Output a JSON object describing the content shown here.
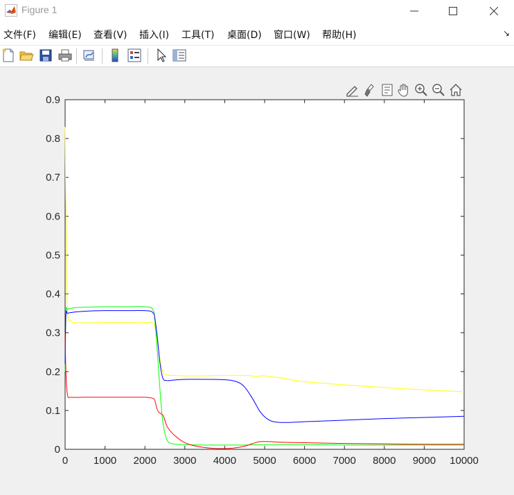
{
  "window": {
    "title": "Figure 1",
    "icon": "matlab-logo-icon",
    "controls": [
      "minimize-icon",
      "maximize-icon",
      "close-icon"
    ]
  },
  "menubar": {
    "items": [
      {
        "label": "文件(F)"
      },
      {
        "label": "编辑(E)"
      },
      {
        "label": "查看(V)"
      },
      {
        "label": "插入(I)"
      },
      {
        "label": "工具(T)"
      },
      {
        "label": "桌面(D)"
      },
      {
        "label": "窗口(W)"
      },
      {
        "label": "帮助(H)"
      }
    ],
    "dock_icon": "dock-arrow-icon"
  },
  "toolbar": {
    "icons": [
      "new-figure-icon",
      "open-file-icon",
      "save-icon",
      "print-icon",
      "link-plot-icon",
      "insert-colorbar-icon",
      "insert-legend-icon",
      "edit-plot-pointer-icon",
      "property-inspector-icon"
    ]
  },
  "axes_toolbar": {
    "icons": [
      "edit-data-tip-icon",
      "brush-icon",
      "data-tip-icon",
      "pan-icon",
      "zoom-in-icon",
      "zoom-out-icon",
      "home-icon"
    ]
  },
  "colors": {
    "figure_bg": "#f0f0f0",
    "axes_bg": "#ffffff",
    "blue": "#0000ff",
    "green": "#00ff00",
    "yellow": "#ffff00",
    "red": "#ff0000"
  },
  "chart_data": {
    "type": "line",
    "title": "",
    "xlabel": "",
    "ylabel": "",
    "xlim": [
      0,
      10000
    ],
    "ylim": [
      0,
      0.9
    ],
    "xticks": [
      "0",
      "1000",
      "2000",
      "3000",
      "4000",
      "5000",
      "6000",
      "7000",
      "8000",
      "9000",
      "10000"
    ],
    "yticks": [
      "0",
      "0.1",
      "0.2",
      "0.3",
      "0.4",
      "0.5",
      "0.6",
      "0.7",
      "0.8",
      "0.9"
    ],
    "grid": false,
    "box": true,
    "series": [
      {
        "color": "#ffff00",
        "x": [
          0,
          20,
          60,
          150,
          300,
          600,
          1000,
          1500,
          2000,
          2200,
          2260,
          2320,
          2380,
          2450,
          2550,
          2700,
          3000,
          3500,
          4000,
          4500,
          4800,
          5000,
          5500,
          6000,
          7000,
          8000,
          9000,
          10000
        ],
        "y": [
          0.83,
          0.6,
          0.36,
          0.33,
          0.326,
          0.326,
          0.327,
          0.327,
          0.327,
          0.325,
          0.31,
          0.27,
          0.23,
          0.2,
          0.192,
          0.19,
          0.189,
          0.189,
          0.19,
          0.19,
          0.188,
          0.189,
          0.182,
          0.174,
          0.166,
          0.159,
          0.153,
          0.148
        ]
      },
      {
        "color": "#00ff00",
        "x": [
          0,
          20,
          60,
          150,
          300,
          600,
          1000,
          1500,
          2000,
          2200,
          2260,
          2320,
          2380,
          2450,
          2550,
          2700,
          3000,
          3500,
          4000,
          4500,
          5000,
          5500,
          6000,
          7000,
          8000,
          9000,
          10000
        ],
        "y": [
          0.2,
          0.35,
          0.36,
          0.363,
          0.365,
          0.366,
          0.367,
          0.367,
          0.367,
          0.36,
          0.32,
          0.24,
          0.15,
          0.07,
          0.025,
          0.014,
          0.012,
          0.011,
          0.011,
          0.011,
          0.012,
          0.012,
          0.012,
          0.011,
          0.011,
          0.011,
          0.011
        ]
      },
      {
        "color": "#0000ff",
        "x": [
          0,
          20,
          60,
          150,
          300,
          600,
          1000,
          1500,
          2000,
          2200,
          2260,
          2320,
          2380,
          2450,
          2550,
          2700,
          3000,
          3500,
          4000,
          4300,
          4500,
          4700,
          4900,
          5100,
          5300,
          5600,
          6000,
          7000,
          8000,
          9000,
          10000
        ],
        "y": [
          0.22,
          0.345,
          0.35,
          0.352,
          0.354,
          0.356,
          0.357,
          0.357,
          0.357,
          0.352,
          0.33,
          0.28,
          0.22,
          0.183,
          0.177,
          0.178,
          0.18,
          0.18,
          0.179,
          0.174,
          0.16,
          0.13,
          0.095,
          0.076,
          0.07,
          0.069,
          0.071,
          0.075,
          0.079,
          0.082,
          0.085
        ]
      },
      {
        "color": "#ff0000",
        "x": [
          0,
          20,
          60,
          150,
          500,
          1000,
          1500,
          2000,
          2200,
          2250,
          2300,
          2350,
          2450,
          2500,
          2550,
          2700,
          3000,
          3400,
          3800,
          4200,
          4500,
          4800,
          5000,
          5500,
          6000,
          7000,
          8000,
          9000,
          10000
        ],
        "y": [
          0.3,
          0.2,
          0.14,
          0.134,
          0.134,
          0.134,
          0.134,
          0.134,
          0.131,
          0.125,
          0.105,
          0.095,
          0.088,
          0.075,
          0.06,
          0.04,
          0.017,
          0.006,
          0.002,
          0.003,
          0.008,
          0.018,
          0.02,
          0.018,
          0.017,
          0.015,
          0.014,
          0.013,
          0.013
        ]
      }
    ]
  }
}
